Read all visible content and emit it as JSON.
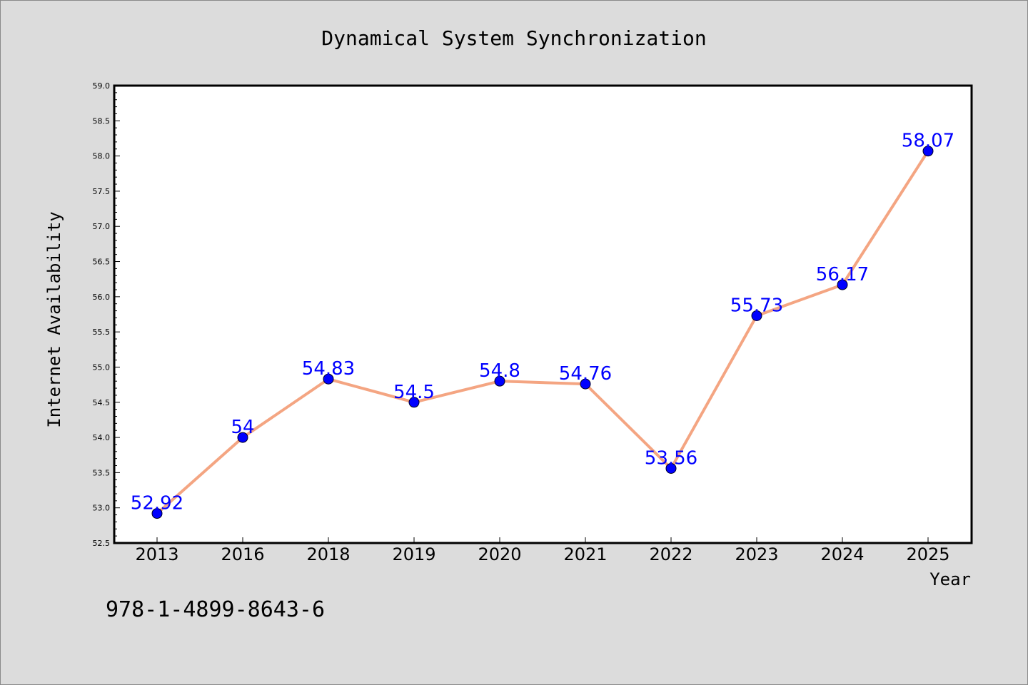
{
  "chart_data": {
    "type": "line",
    "title": "Dynamical System Synchronization",
    "xlabel": "Year",
    "ylabel": "Internet Availability",
    "categories": [
      "2013",
      "2016",
      "2018",
      "2019",
      "2020",
      "2021",
      "2022",
      "2023",
      "2024",
      "2025"
    ],
    "series": [
      {
        "values": [
          52.92,
          54,
          54.83,
          54.5,
          54.8,
          54.76,
          53.56,
          55.73,
          56.17,
          58.07
        ],
        "labels": [
          "52.92",
          "54",
          "54.83",
          "54.5",
          "54.8",
          "54.76",
          "53.56",
          "55.73",
          "56.17",
          "58.07"
        ]
      }
    ],
    "ylim": [
      52.5,
      59.0
    ],
    "yticks": [
      "52.5",
      "53.0",
      "53.5",
      "54.0",
      "54.5",
      "55.0",
      "55.5",
      "56.0",
      "56.5",
      "57.0",
      "57.5",
      "58.0",
      "58.5",
      "59.0"
    ],
    "grid": false,
    "legend": "none",
    "colors": {
      "line": "#f4a582",
      "marker": "#0000ff",
      "label": "#0000ff",
      "plot_bg": "#ffffff",
      "page_bg": "#dcdcdc"
    }
  },
  "footer": {
    "isbn": "978-1-4899-8643-6"
  }
}
